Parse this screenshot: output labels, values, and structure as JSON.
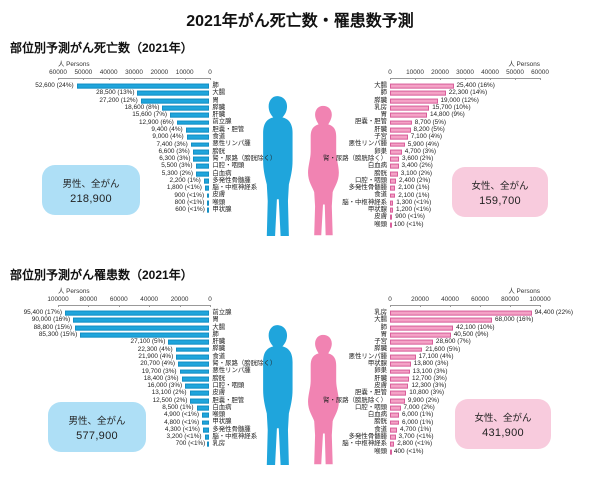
{
  "page_title": "2021年がん死亡数・罹患数予測",
  "axis_unit": "人 Persons",
  "colors": {
    "male_bar": "#1FA5DC",
    "male_box": "#AEDFF6",
    "female_bar": "#F4A2C6",
    "female_bar_border": "#D85F9B",
    "female_box": "#F8CBDD",
    "male_figure": "#1FA5DC",
    "female_figure": "#F183B2"
  },
  "chart_data": [
    {
      "type": "bar",
      "title": "部位別予測がん死亡数（2021年）",
      "xlabel": "人 Persons",
      "grid": false,
      "series": [
        {
          "name": "男性、全がん",
          "total": "218,900",
          "zero_side": "right",
          "xlim": [
            0,
            60000
          ],
          "ticks": [
            "60000",
            "50000",
            "40000",
            "30000",
            "20000",
            "10000",
            "0"
          ],
          "items": [
            {
              "label": "肺",
              "value": 52600,
              "value_text": "52,600 (24%)"
            },
            {
              "label": "大腸",
              "value": 28500,
              "value_text": "28,500 (13%)"
            },
            {
              "label": "胃",
              "value": 27200,
              "value_text": "27,200 (12%)"
            },
            {
              "label": "膵臓",
              "value": 18600,
              "value_text": "18,600 (8%)"
            },
            {
              "label": "肝臓",
              "value": 15600,
              "value_text": "15,600 (7%)"
            },
            {
              "label": "前立腺",
              "value": 12900,
              "value_text": "12,900 (6%)"
            },
            {
              "label": "胆嚢・胆管",
              "value": 9400,
              "value_text": "9,400 (4%)"
            },
            {
              "label": "食道",
              "value": 9000,
              "value_text": "9,000 (4%)"
            },
            {
              "label": "悪性リンパ腫",
              "value": 7400,
              "value_text": "7,400 (3%)"
            },
            {
              "label": "膀胱",
              "value": 6600,
              "value_text": "6,600 (3%)"
            },
            {
              "label": "腎・尿路（膀胱除く）",
              "value": 6300,
              "value_text": "6,300 (3%)"
            },
            {
              "label": "口腔・咽頭",
              "value": 5500,
              "value_text": "5,500 (3%)"
            },
            {
              "label": "白血病",
              "value": 5300,
              "value_text": "5,300 (2%)"
            },
            {
              "label": "多発性骨髄腫",
              "value": 2200,
              "value_text": "2,200 (1%)"
            },
            {
              "label": "脳・中枢神経系",
              "value": 1800,
              "value_text": "1,800 (<1%)"
            },
            {
              "label": "皮膚",
              "value": 900,
              "value_text": "900 (<1%)"
            },
            {
              "label": "喉頭",
              "value": 800,
              "value_text": "800 (<1%)"
            },
            {
              "label": "甲状腺",
              "value": 600,
              "value_text": "600 (<1%)"
            }
          ]
        },
        {
          "name": "女性、全がん",
          "total": "159,700",
          "zero_side": "left",
          "xlim": [
            0,
            60000
          ],
          "ticks": [
            "0",
            "10000",
            "20000",
            "30000",
            "40000",
            "50000",
            "60000"
          ],
          "items": [
            {
              "label": "大腸",
              "value": 25400,
              "value_text": "25,400 (16%)"
            },
            {
              "label": "肺",
              "value": 22300,
              "value_text": "22,300 (14%)"
            },
            {
              "label": "膵臓",
              "value": 19000,
              "value_text": "19,000 (12%)"
            },
            {
              "label": "乳房",
              "value": 15700,
              "value_text": "15,700 (10%)"
            },
            {
              "label": "胃",
              "value": 14800,
              "value_text": "14,800 (9%)"
            },
            {
              "label": "胆嚢・胆管",
              "value": 8700,
              "value_text": "8,700 (5%)"
            },
            {
              "label": "肝臓",
              "value": 8200,
              "value_text": "8,200 (5%)"
            },
            {
              "label": "子宮",
              "value": 7100,
              "value_text": "7,100 (4%)"
            },
            {
              "label": "悪性リンパ腫",
              "value": 5900,
              "value_text": "5,900 (4%)"
            },
            {
              "label": "卵巣",
              "value": 4700,
              "value_text": "4,700 (3%)"
            },
            {
              "label": "腎・尿路（膀胱除く）",
              "value": 3600,
              "value_text": "3,600 (2%)"
            },
            {
              "label": "白血病",
              "value": 3400,
              "value_text": "3,400 (2%)"
            },
            {
              "label": "膀胱",
              "value": 3100,
              "value_text": "3,100 (2%)"
            },
            {
              "label": "口腔・咽頭",
              "value": 2400,
              "value_text": "2,400 (2%)"
            },
            {
              "label": "多発性骨髄腫",
              "value": 2100,
              "value_text": "2,100 (1%)"
            },
            {
              "label": "食道",
              "value": 2100,
              "value_text": "2,100 (1%)"
            },
            {
              "label": "脳・中枢神経系",
              "value": 1300,
              "value_text": "1,300 (<1%)"
            },
            {
              "label": "甲状腺",
              "value": 1200,
              "value_text": "1,200 (<1%)"
            },
            {
              "label": "皮膚",
              "value": 900,
              "value_text": "900 (<1%)"
            },
            {
              "label": "喉頭",
              "value": 100,
              "value_text": "100 (<1%)"
            }
          ]
        }
      ]
    },
    {
      "type": "bar",
      "title": "部位別予測がん罹患数（2021年）",
      "xlabel": "人 Persons",
      "grid": false,
      "series": [
        {
          "name": "男性、全がん",
          "total": "577,900",
          "zero_side": "right",
          "xlim": [
            0,
            100000
          ],
          "ticks": [
            "100000",
            "80000",
            "60000",
            "40000",
            "20000",
            "0"
          ],
          "items": [
            {
              "label": "前立腺",
              "value": 95400,
              "value_text": "95,400 (17%)"
            },
            {
              "label": "胃",
              "value": 90000,
              "value_text": "90,000 (16%)"
            },
            {
              "label": "大腸",
              "value": 88800,
              "value_text": "88,800 (15%)"
            },
            {
              "label": "肺",
              "value": 85300,
              "value_text": "85,300 (15%)"
            },
            {
              "label": "肝臓",
              "value": 27100,
              "value_text": "27,100 (5%)"
            },
            {
              "label": "膵臓",
              "value": 22300,
              "value_text": "22,300 (4%)"
            },
            {
              "label": "食道",
              "value": 21900,
              "value_text": "21,900 (4%)"
            },
            {
              "label": "腎・尿路（膀胱除く）",
              "value": 20700,
              "value_text": "20,700 (4%)"
            },
            {
              "label": "悪性リンパ腫",
              "value": 19700,
              "value_text": "19,700 (3%)"
            },
            {
              "label": "膀胱",
              "value": 18400,
              "value_text": "18,400 (3%)"
            },
            {
              "label": "口腔・咽頭",
              "value": 16000,
              "value_text": "16,000 (3%)"
            },
            {
              "label": "皮膚",
              "value": 13100,
              "value_text": "13,100 (2%)"
            },
            {
              "label": "胆嚢・胆管",
              "value": 12500,
              "value_text": "12,500 (2%)"
            },
            {
              "label": "白血病",
              "value": 8500,
              "value_text": "8,500 (1%)"
            },
            {
              "label": "喉頭",
              "value": 4900,
              "value_text": "4,900 (<1%)"
            },
            {
              "label": "甲状腺",
              "value": 4800,
              "value_text": "4,800 (<1%)"
            },
            {
              "label": "多発性骨髄腫",
              "value": 4300,
              "value_text": "4,300 (<1%)"
            },
            {
              "label": "脳・中枢神経系",
              "value": 3200,
              "value_text": "3,200 (<1%)"
            },
            {
              "label": "乳房",
              "value": 700,
              "value_text": "700 (<1%)"
            }
          ]
        },
        {
          "name": "女性、全がん",
          "total": "431,900",
          "zero_side": "left",
          "xlim": [
            0,
            100000
          ],
          "ticks": [
            "0",
            "20000",
            "40000",
            "60000",
            "80000",
            "100000"
          ],
          "items": [
            {
              "label": "乳房",
              "value": 94400,
              "value_text": "94,400 (22%)"
            },
            {
              "label": "大腸",
              "value": 68000,
              "value_text": "68,000 (16%)"
            },
            {
              "label": "肺",
              "value": 42100,
              "value_text": "42,100 (10%)"
            },
            {
              "label": "胃",
              "value": 40500,
              "value_text": "40,500 (9%)"
            },
            {
              "label": "子宮",
              "value": 28600,
              "value_text": "28,600 (7%)"
            },
            {
              "label": "膵臓",
              "value": 21600,
              "value_text": "21,600 (5%)"
            },
            {
              "label": "悪性リンパ腫",
              "value": 17100,
              "value_text": "17,100 (4%)"
            },
            {
              "label": "甲状腺",
              "value": 13800,
              "value_text": "13,800 (3%)"
            },
            {
              "label": "卵巣",
              "value": 13100,
              "value_text": "13,100 (3%)"
            },
            {
              "label": "肝臓",
              "value": 12700,
              "value_text": "12,700 (3%)"
            },
            {
              "label": "皮膚",
              "value": 12300,
              "value_text": "12,300 (3%)"
            },
            {
              "label": "胆嚢・胆管",
              "value": 10800,
              "value_text": "10,800 (3%)"
            },
            {
              "label": "腎・尿路（膀胱除く）",
              "value": 9900,
              "value_text": "9,900 (2%)"
            },
            {
              "label": "口腔・咽頭",
              "value": 7000,
              "value_text": "7,000 (2%)"
            },
            {
              "label": "白血病",
              "value": 6000,
              "value_text": "6,000 (1%)"
            },
            {
              "label": "膀胱",
              "value": 6000,
              "value_text": "6,000 (1%)"
            },
            {
              "label": "食道",
              "value": 4700,
              "value_text": "4,700 (1%)"
            },
            {
              "label": "多発性骨髄腫",
              "value": 3700,
              "value_text": "3,700 (<1%)"
            },
            {
              "label": "脳・中枢神経系",
              "value": 2800,
              "value_text": "2,800 (<1%)"
            },
            {
              "label": "喉頭",
              "value": 400,
              "value_text": "400 (<1%)"
            }
          ]
        }
      ]
    }
  ]
}
